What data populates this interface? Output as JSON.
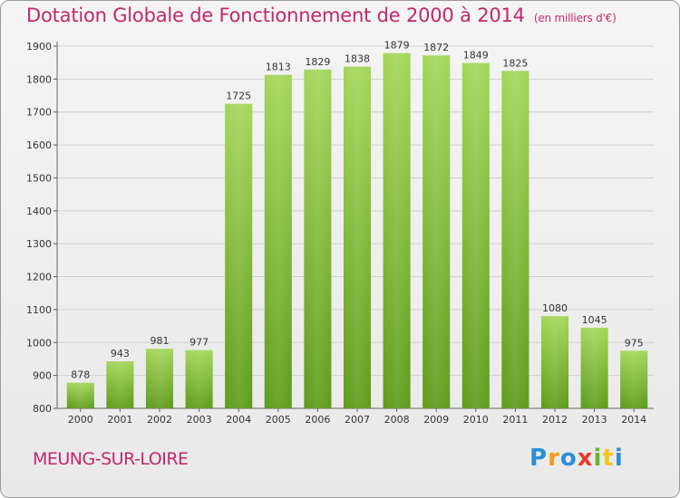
{
  "title": "Dotation Globale de Fonctionnement de 2000 à 2014",
  "unit": "(en milliers d'€)",
  "commune": "MEUNG-SUR-LOIRE",
  "logo": {
    "letters": [
      "P",
      "r",
      "o",
      "x",
      "i",
      "t",
      "i"
    ],
    "colors": [
      "#2b8fd6",
      "#f29b1d",
      "#2b8fd6",
      "#e53b2c",
      "#6ab52f",
      "#f2c61d",
      "#2b8fd6"
    ]
  },
  "colors": {
    "title": "#c0286d",
    "bar_top": "#a4d65a",
    "bar_bottom": "#5e9b1a",
    "grid": "#d0d0d0",
    "background": "#eeeeee"
  },
  "chart_data": {
    "type": "bar",
    "categories": [
      "2000",
      "2001",
      "2002",
      "2003",
      "2004",
      "2005",
      "2006",
      "2007",
      "2008",
      "2009",
      "2010",
      "2011",
      "2012",
      "2013",
      "2014"
    ],
    "values": [
      878,
      943,
      981,
      977,
      1725,
      1813,
      1829,
      1838,
      1879,
      1872,
      1849,
      1825,
      1080,
      1045,
      975
    ],
    "ylim": [
      800,
      1900
    ],
    "yticks": [
      800,
      900,
      1000,
      1100,
      1200,
      1300,
      1400,
      1500,
      1600,
      1700,
      1800,
      1900
    ],
    "grid": true,
    "xlabel": "",
    "ylabel": ""
  }
}
